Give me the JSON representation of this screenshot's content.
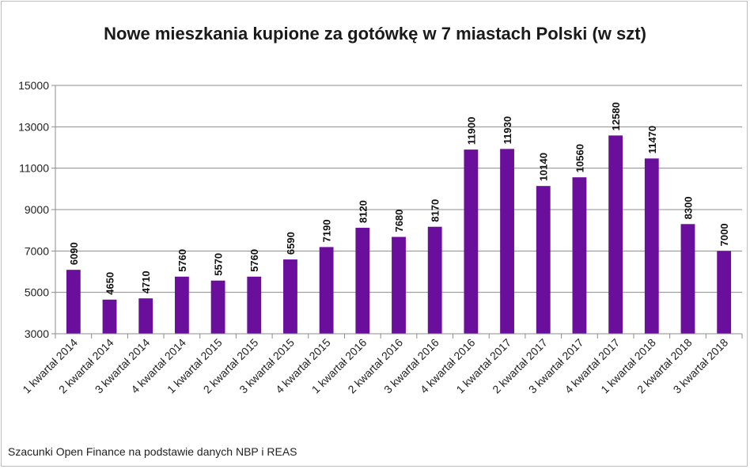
{
  "chart_data": {
    "type": "bar",
    "title": "Nowe mieszkania kupione za gotówkę w 7 miastach Polski (w szt)",
    "xlabel": "",
    "ylabel": "",
    "ylim": [
      3000,
      15000
    ],
    "yticks": [
      3000,
      5000,
      7000,
      9000,
      11000,
      13000,
      15000
    ],
    "grid": true,
    "legend": "none",
    "bar_color": "#6a0f9c",
    "categories": [
      "1 kwartał 2014",
      "2 kwartał 2014",
      "3 kwartał 2014",
      "4 kwartał 2014",
      "1 kwartał 2015",
      "2 kwartał 2015",
      "3 kwartał 2015",
      "4 kwartał 2015",
      "1 kwartał 2016",
      "2 kwartał 2016",
      "3 kwartał 2016",
      "4 kwartał 2016",
      "1 kwartał 2017",
      "2 kwartał 2017",
      "3 kwartał 2017",
      "4 kwartał 2017",
      "1 kwartał 2018",
      "2 kwartał 2018",
      "3 kwartał 2018"
    ],
    "values": [
      6090,
      4650,
      4710,
      5760,
      5570,
      5760,
      6590,
      7190,
      8120,
      7680,
      8170,
      11900,
      11930,
      10140,
      10560,
      12580,
      11470,
      8300,
      7000
    ],
    "data_labels": [
      "6090",
      "4650",
      "4710",
      "5760",
      "5570",
      "5760",
      "6590",
      "7190",
      "8120",
      "7680",
      "8170",
      "11900",
      "11930",
      "10140",
      "10560",
      "12580",
      "11470",
      "8300",
      "7000"
    ]
  },
  "source_note": "Szacunki Open Finance na podstawie danych NBP i REAS"
}
